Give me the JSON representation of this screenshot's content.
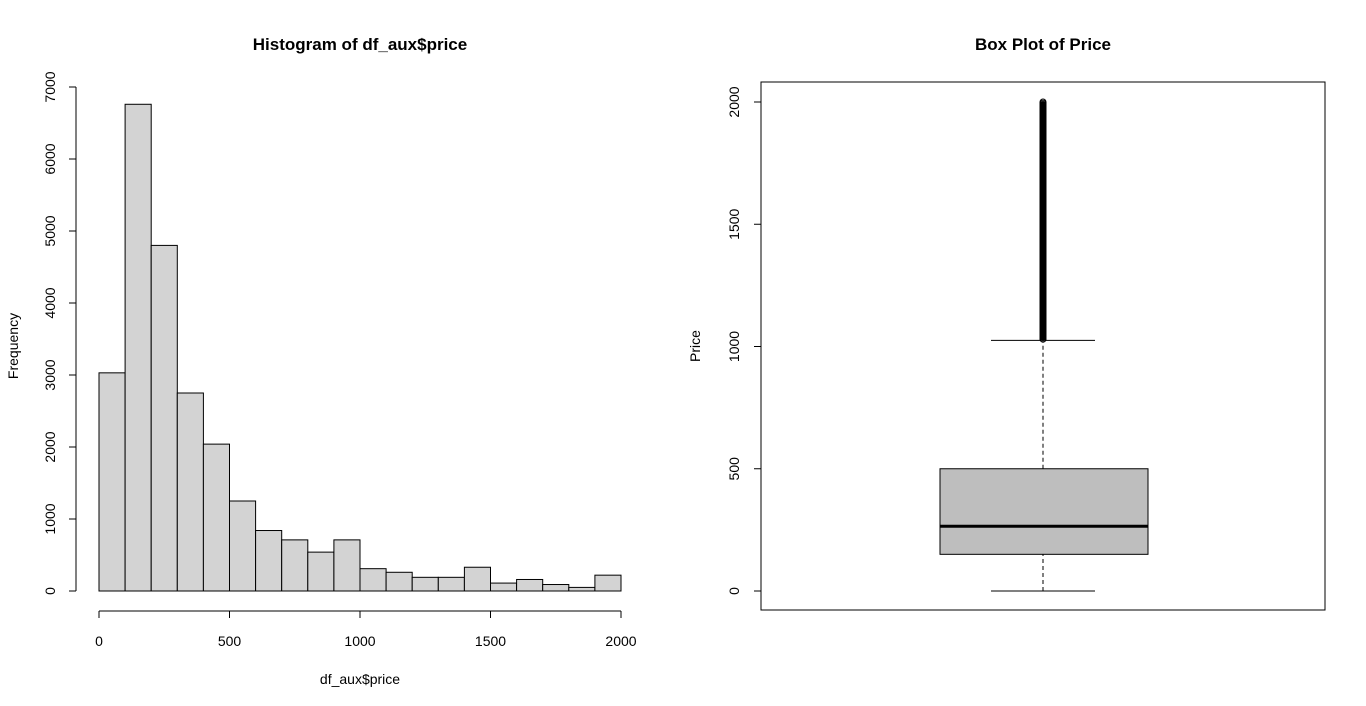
{
  "chart_data": [
    {
      "type": "bar",
      "subtype": "histogram",
      "title": "Histogram of df_aux$price",
      "xlabel": "df_aux$price",
      "ylabel": "Frequency",
      "bin_width": 100,
      "bin_starts": [
        0,
        100,
        200,
        300,
        400,
        500,
        600,
        700,
        800,
        900,
        1000,
        1100,
        1200,
        1300,
        1400,
        1500,
        1600,
        1700,
        1800,
        1900
      ],
      "values": [
        3030,
        6760,
        4800,
        2750,
        2040,
        1250,
        840,
        710,
        540,
        710,
        310,
        260,
        190,
        190,
        330,
        110,
        160,
        90,
        50,
        220
      ],
      "xlim": [
        0,
        2000
      ],
      "ylim": [
        0,
        7000
      ],
      "xticks": [
        0,
        500,
        1000,
        1500,
        2000
      ],
      "yticks": [
        0,
        1000,
        2000,
        3000,
        4000,
        5000,
        6000,
        7000
      ],
      "bar_color": "#d3d3d3",
      "grid": false
    },
    {
      "type": "box",
      "title": "Box Plot of Price",
      "xlabel": "",
      "ylabel": "Price",
      "ylim": [
        -75,
        2075
      ],
      "yticks": [
        0,
        500,
        1000,
        1500,
        2000
      ],
      "whisker_low": 0,
      "q1": 150,
      "median": 265,
      "q3": 500,
      "whisker_high": 1025,
      "outliers_range": [
        1025,
        2000
      ],
      "outliers": [
        1030,
        1045,
        1060,
        1075,
        1090,
        1105,
        1120,
        1140,
        1160,
        1180,
        1200,
        1220,
        1240,
        1260,
        1280,
        1300,
        1320,
        1350,
        1380,
        1400,
        1420,
        1450,
        1480,
        1500,
        1520,
        1550,
        1580,
        1600,
        1620,
        1650,
        1680,
        1700,
        1720,
        1750,
        1770,
        1780,
        1800,
        1820,
        1840,
        1850,
        1860,
        1880,
        1900,
        1910,
        1920,
        1940,
        1950,
        1960,
        1975,
        1985,
        1990,
        1995,
        2000
      ],
      "box_color": "#bebebe",
      "grid": false
    }
  ]
}
